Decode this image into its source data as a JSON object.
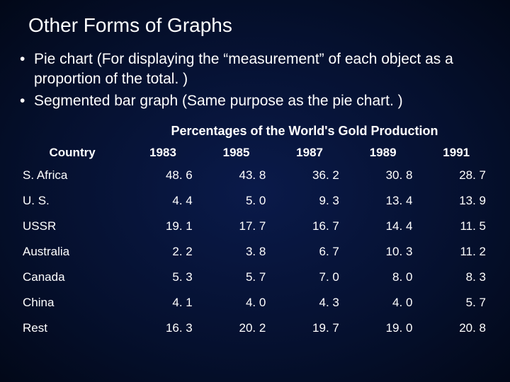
{
  "slide": {
    "title": "Other Forms of Graphs",
    "bullets": [
      "Pie chart (For displaying the “measurement” of each object as a proportion of the total. )",
      "Segmented bar graph (Same purpose as the pie chart. )"
    ]
  },
  "table": {
    "type": "table",
    "title": "Percentages of the World's Gold Production",
    "title_fontsize": 18,
    "header_fontsize": 17,
    "cell_fontsize": 17,
    "text_color": "#ffffff",
    "background": "transparent",
    "columns": [
      "Country",
      "1983",
      "1985",
      "1987",
      "1989",
      "1991"
    ],
    "column_align": [
      "left",
      "right",
      "right",
      "right",
      "right",
      "right"
    ],
    "rows": [
      [
        "S. Africa",
        "48. 6",
        "43. 8",
        "36. 2",
        "30. 8",
        "28. 7"
      ],
      [
        "U. S.",
        "4. 4",
        "5. 0",
        "9. 3",
        "13. 4",
        "13. 9"
      ],
      [
        "USSR",
        "19. 1",
        "17. 7",
        "16. 7",
        "14. 4",
        "11. 5"
      ],
      [
        "Australia",
        "2. 2",
        "3. 8",
        "6. 7",
        "10. 3",
        "11. 2"
      ],
      [
        "Canada",
        "5. 3",
        "5. 7",
        "7. 0",
        "8. 0",
        "8. 3"
      ],
      [
        "China",
        "4. 1",
        "4. 0",
        "4. 3",
        "4. 0",
        "5. 7"
      ],
      [
        "Rest",
        "16. 3",
        "20. 2",
        "19. 7",
        "19. 0",
        "20. 8"
      ]
    ]
  },
  "styling": {
    "slide_bg_gradient": [
      "#0a1a4a",
      "#05102e",
      "#020818"
    ],
    "title_fontsize": 28,
    "bullet_fontsize": 21,
    "font_family": "Arial"
  }
}
